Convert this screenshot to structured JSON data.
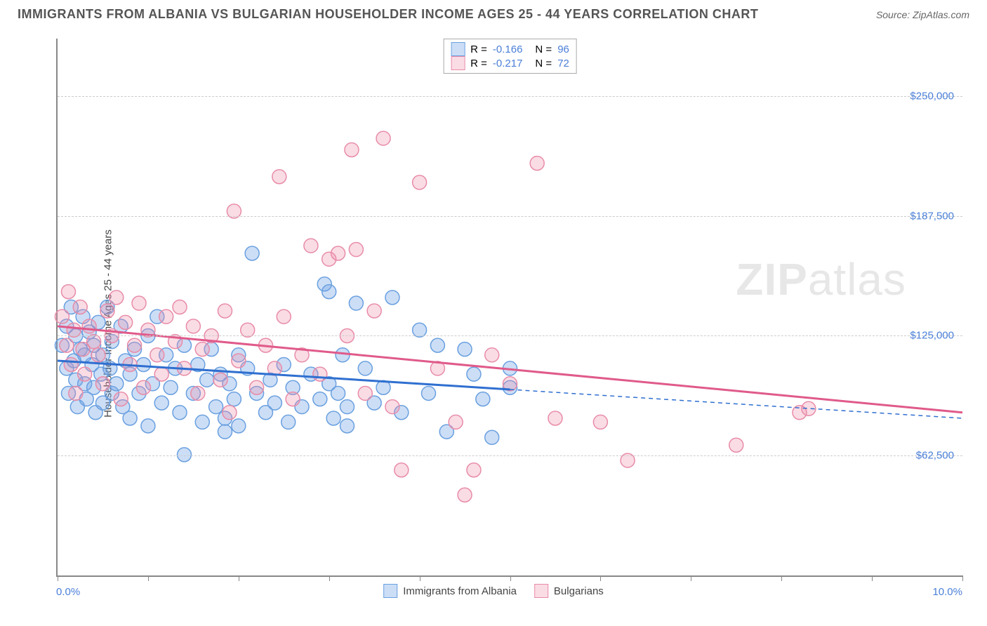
{
  "title": "IMMIGRANTS FROM ALBANIA VS BULGARIAN HOUSEHOLDER INCOME AGES 25 - 44 YEARS CORRELATION CHART",
  "source": "Source: ZipAtlas.com",
  "y_axis_label": "Householder Income Ages 25 - 44 years",
  "watermark_a": "ZIP",
  "watermark_b": "atlas",
  "chart": {
    "type": "scatter",
    "xlim": [
      0,
      10
    ],
    "ylim": [
      0,
      280000
    ],
    "x_ticks": [
      0,
      1,
      2,
      3,
      4,
      5,
      6,
      7,
      8,
      9,
      10
    ],
    "x_tick_labels_visible": {
      "0": "0.0%",
      "10": "10.0%"
    },
    "y_gridlines": [
      62500,
      125000,
      187500,
      250000
    ],
    "y_tick_labels": {
      "62500": "$62,500",
      "125000": "$125,000",
      "187500": "$187,500",
      "250000": "$250,000"
    },
    "grid_color": "#cccccc",
    "axis_color": "#888888",
    "tick_label_color": "#4a7fd8",
    "background_color": "#ffffff"
  },
  "series": [
    {
      "name": "Immigrants from Albania",
      "R": "-0.166",
      "N": "96",
      "marker_fill": "rgba(110,160,230,0.35)",
      "marker_stroke": "#6aa0e0",
      "marker_r": 10,
      "trend_color": "#2f6fd0",
      "trend_width": 3,
      "trend": {
        "x1": 0,
        "y1": 112000,
        "x2": 5,
        "y2": 97000,
        "x2_dash": 10,
        "y2_dash": 82000
      },
      "points": [
        [
          0.05,
          120000
        ],
        [
          0.1,
          108000
        ],
        [
          0.1,
          130000
        ],
        [
          0.12,
          95000
        ],
        [
          0.15,
          140000
        ],
        [
          0.18,
          112000
        ],
        [
          0.2,
          102000
        ],
        [
          0.2,
          125000
        ],
        [
          0.22,
          88000
        ],
        [
          0.25,
          118000
        ],
        [
          0.28,
          135000
        ],
        [
          0.3,
          100000
        ],
        [
          0.3,
          115000
        ],
        [
          0.32,
          92000
        ],
        [
          0.35,
          127000
        ],
        [
          0.38,
          110000
        ],
        [
          0.4,
          98000
        ],
        [
          0.4,
          120000
        ],
        [
          0.42,
          85000
        ],
        [
          0.45,
          132000
        ],
        [
          0.48,
          105000
        ],
        [
          0.5,
          115000
        ],
        [
          0.5,
          90000
        ],
        [
          0.55,
          140000
        ],
        [
          0.58,
          108000
        ],
        [
          0.6,
          122000
        ],
        [
          0.6,
          95000
        ],
        [
          0.65,
          100000
        ],
        [
          0.7,
          130000
        ],
        [
          0.72,
          88000
        ],
        [
          0.75,
          112000
        ],
        [
          0.8,
          105000
        ],
        [
          0.8,
          82000
        ],
        [
          0.85,
          118000
        ],
        [
          0.9,
          95000
        ],
        [
          0.95,
          110000
        ],
        [
          1.0,
          125000
        ],
        [
          1.0,
          78000
        ],
        [
          1.05,
          100000
        ],
        [
          1.1,
          135000
        ],
        [
          1.15,
          90000
        ],
        [
          1.2,
          115000
        ],
        [
          1.25,
          98000
        ],
        [
          1.3,
          108000
        ],
        [
          1.35,
          85000
        ],
        [
          1.4,
          63000
        ],
        [
          1.4,
          120000
        ],
        [
          1.5,
          95000
        ],
        [
          1.55,
          110000
        ],
        [
          1.6,
          80000
        ],
        [
          1.65,
          102000
        ],
        [
          1.7,
          118000
        ],
        [
          1.75,
          88000
        ],
        [
          1.8,
          105000
        ],
        [
          1.85,
          75000
        ],
        [
          1.85,
          82000
        ],
        [
          1.9,
          100000
        ],
        [
          1.95,
          92000
        ],
        [
          2.0,
          115000
        ],
        [
          2.0,
          78000
        ],
        [
          2.1,
          108000
        ],
        [
          2.15,
          168000
        ],
        [
          2.2,
          95000
        ],
        [
          2.3,
          85000
        ],
        [
          2.35,
          102000
        ],
        [
          2.4,
          90000
        ],
        [
          2.5,
          110000
        ],
        [
          2.55,
          80000
        ],
        [
          2.6,
          98000
        ],
        [
          2.7,
          88000
        ],
        [
          2.8,
          105000
        ],
        [
          2.9,
          92000
        ],
        [
          2.95,
          152000
        ],
        [
          3.0,
          148000
        ],
        [
          3.0,
          100000
        ],
        [
          3.05,
          82000
        ],
        [
          3.1,
          95000
        ],
        [
          3.15,
          115000
        ],
        [
          3.2,
          78000
        ],
        [
          3.2,
          88000
        ],
        [
          3.3,
          142000
        ],
        [
          3.4,
          108000
        ],
        [
          3.5,
          90000
        ],
        [
          3.6,
          98000
        ],
        [
          3.7,
          145000
        ],
        [
          3.8,
          85000
        ],
        [
          4.0,
          128000
        ],
        [
          4.1,
          95000
        ],
        [
          4.2,
          120000
        ],
        [
          4.3,
          75000
        ],
        [
          4.5,
          118000
        ],
        [
          4.6,
          105000
        ],
        [
          4.7,
          92000
        ],
        [
          4.8,
          72000
        ],
        [
          5.0,
          108000
        ],
        [
          5.0,
          98000
        ]
      ]
    },
    {
      "name": "Bulgarians",
      "R": "-0.217",
      "N": "72",
      "marker_fill": "rgba(240,140,170,0.30)",
      "marker_stroke": "#e88ca8",
      "marker_r": 10,
      "trend_color": "#e05a8a",
      "trend_width": 3,
      "trend": {
        "x1": 0,
        "y1": 130000,
        "x2": 10,
        "y2": 85000
      },
      "points": [
        [
          0.05,
          135000
        ],
        [
          0.1,
          120000
        ],
        [
          0.12,
          148000
        ],
        [
          0.15,
          110000
        ],
        [
          0.18,
          128000
        ],
        [
          0.2,
          95000
        ],
        [
          0.25,
          140000
        ],
        [
          0.28,
          118000
        ],
        [
          0.3,
          105000
        ],
        [
          0.35,
          130000
        ],
        [
          0.4,
          122000
        ],
        [
          0.45,
          115000
        ],
        [
          0.5,
          100000
        ],
        [
          0.55,
          138000
        ],
        [
          0.6,
          125000
        ],
        [
          0.65,
          145000
        ],
        [
          0.7,
          92000
        ],
        [
          0.75,
          132000
        ],
        [
          0.8,
          110000
        ],
        [
          0.85,
          120000
        ],
        [
          0.9,
          142000
        ],
        [
          0.95,
          98000
        ],
        [
          1.0,
          128000
        ],
        [
          1.1,
          115000
        ],
        [
          1.15,
          105000
        ],
        [
          1.2,
          135000
        ],
        [
          1.3,
          122000
        ],
        [
          1.35,
          140000
        ],
        [
          1.4,
          108000
        ],
        [
          1.5,
          130000
        ],
        [
          1.55,
          95000
        ],
        [
          1.6,
          118000
        ],
        [
          1.7,
          125000
        ],
        [
          1.8,
          102000
        ],
        [
          1.85,
          138000
        ],
        [
          1.9,
          85000
        ],
        [
          1.95,
          190000
        ],
        [
          2.0,
          112000
        ],
        [
          2.1,
          128000
        ],
        [
          2.2,
          98000
        ],
        [
          2.3,
          120000
        ],
        [
          2.4,
          108000
        ],
        [
          2.45,
          208000
        ],
        [
          2.5,
          135000
        ],
        [
          2.6,
          92000
        ],
        [
          2.7,
          115000
        ],
        [
          2.8,
          172000
        ],
        [
          2.9,
          105000
        ],
        [
          3.0,
          165000
        ],
        [
          3.1,
          168000
        ],
        [
          3.2,
          125000
        ],
        [
          3.25,
          222000
        ],
        [
          3.3,
          170000
        ],
        [
          3.4,
          95000
        ],
        [
          3.5,
          138000
        ],
        [
          3.6,
          228000
        ],
        [
          3.7,
          88000
        ],
        [
          3.8,
          55000
        ],
        [
          4.0,
          205000
        ],
        [
          4.2,
          108000
        ],
        [
          4.4,
          80000
        ],
        [
          4.5,
          42000
        ],
        [
          4.6,
          55000
        ],
        [
          4.8,
          115000
        ],
        [
          5.0,
          100000
        ],
        [
          5.3,
          215000
        ],
        [
          5.5,
          82000
        ],
        [
          6.0,
          80000
        ],
        [
          6.3,
          60000
        ],
        [
          7.5,
          68000
        ],
        [
          8.2,
          85000
        ],
        [
          8.3,
          87000
        ]
      ]
    }
  ],
  "legend_top_labels": {
    "R": "R =",
    "N": "N ="
  },
  "legend_bottom": [
    "Immigrants from Albania",
    "Bulgarians"
  ]
}
